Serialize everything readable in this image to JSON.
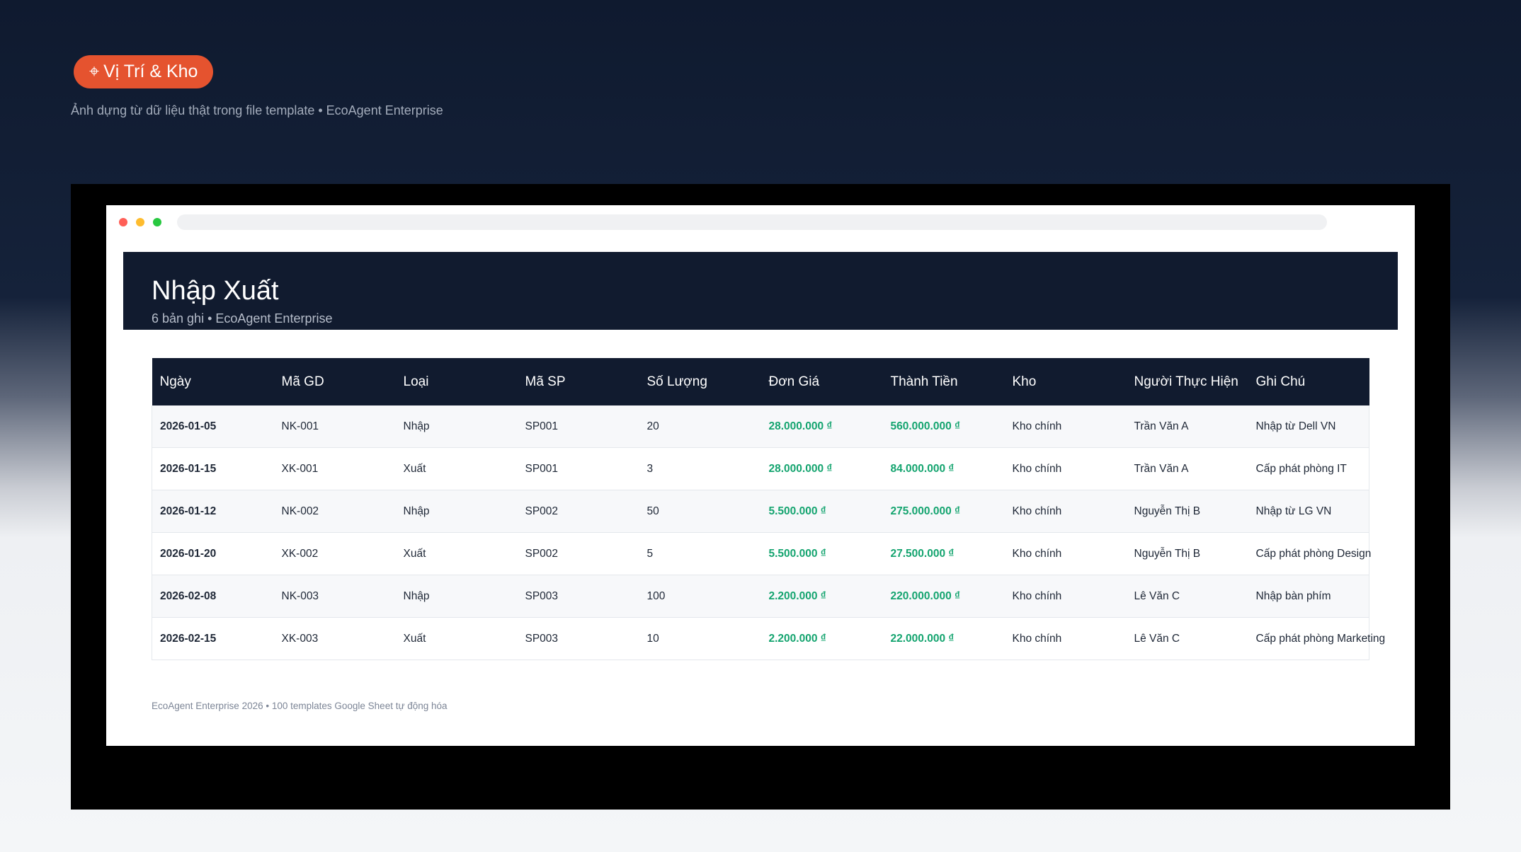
{
  "badge": {
    "icon": "map-pin-icon",
    "icon_glyph": "⌖",
    "label": "Vị Trí & Kho"
  },
  "caption": "Ảnh dựng từ dữ liệu thật trong file template • EcoAgent Enterprise",
  "window": {
    "dot_colors": [
      "#ff5f57",
      "#febc2e",
      "#28c840"
    ]
  },
  "sheet": {
    "title": "Nhập Xuất",
    "meta": "6 bản ghi • EcoAgent Enterprise",
    "columns": [
      "Ngày",
      "Mã GD",
      "Loại",
      "Mã SP",
      "Số Lượng",
      "Đơn Giá",
      "Thành Tiền",
      "Kho",
      "Người Thực Hiện",
      "Ghi Chú"
    ],
    "rows": [
      [
        "2026-01-05",
        "NK-001",
        "Nhập",
        "SP001",
        "20",
        "28.000.000 ₫",
        "560.000.000 ₫",
        "Kho chính",
        "Trần Văn A",
        "Nhập từ Dell VN"
      ],
      [
        "2026-01-15",
        "XK-001",
        "Xuất",
        "SP001",
        "3",
        "28.000.000 ₫",
        "84.000.000 ₫",
        "Kho chính",
        "Trần Văn A",
        "Cấp phát phòng IT"
      ],
      [
        "2026-01-12",
        "NK-002",
        "Nhập",
        "SP002",
        "50",
        "5.500.000 ₫",
        "275.000.000 ₫",
        "Kho chính",
        "Nguyễn Thị B",
        "Nhập từ LG VN"
      ],
      [
        "2026-01-20",
        "XK-002",
        "Xuất",
        "SP002",
        "5",
        "5.500.000 ₫",
        "27.500.000 ₫",
        "Kho chính",
        "Nguyễn Thị B",
        "Cấp phát phòng Design"
      ],
      [
        "2026-02-08",
        "NK-003",
        "Nhập",
        "SP003",
        "100",
        "2.200.000 ₫",
        "220.000.000 ₫",
        "Kho chính",
        "Lê Văn C",
        "Nhập bàn phím"
      ],
      [
        "2026-02-15",
        "XK-003",
        "Xuất",
        "SP003",
        "10",
        "2.200.000 ₫",
        "22.000.000 ₫",
        "Kho chính",
        "Lê Văn C",
        "Cấp phát phòng Marketing"
      ]
    ],
    "money_color": "#14a46f",
    "footnote": "EcoAgent Enterprise 2026 • 100 templates Google Sheet tự động hóa"
  }
}
